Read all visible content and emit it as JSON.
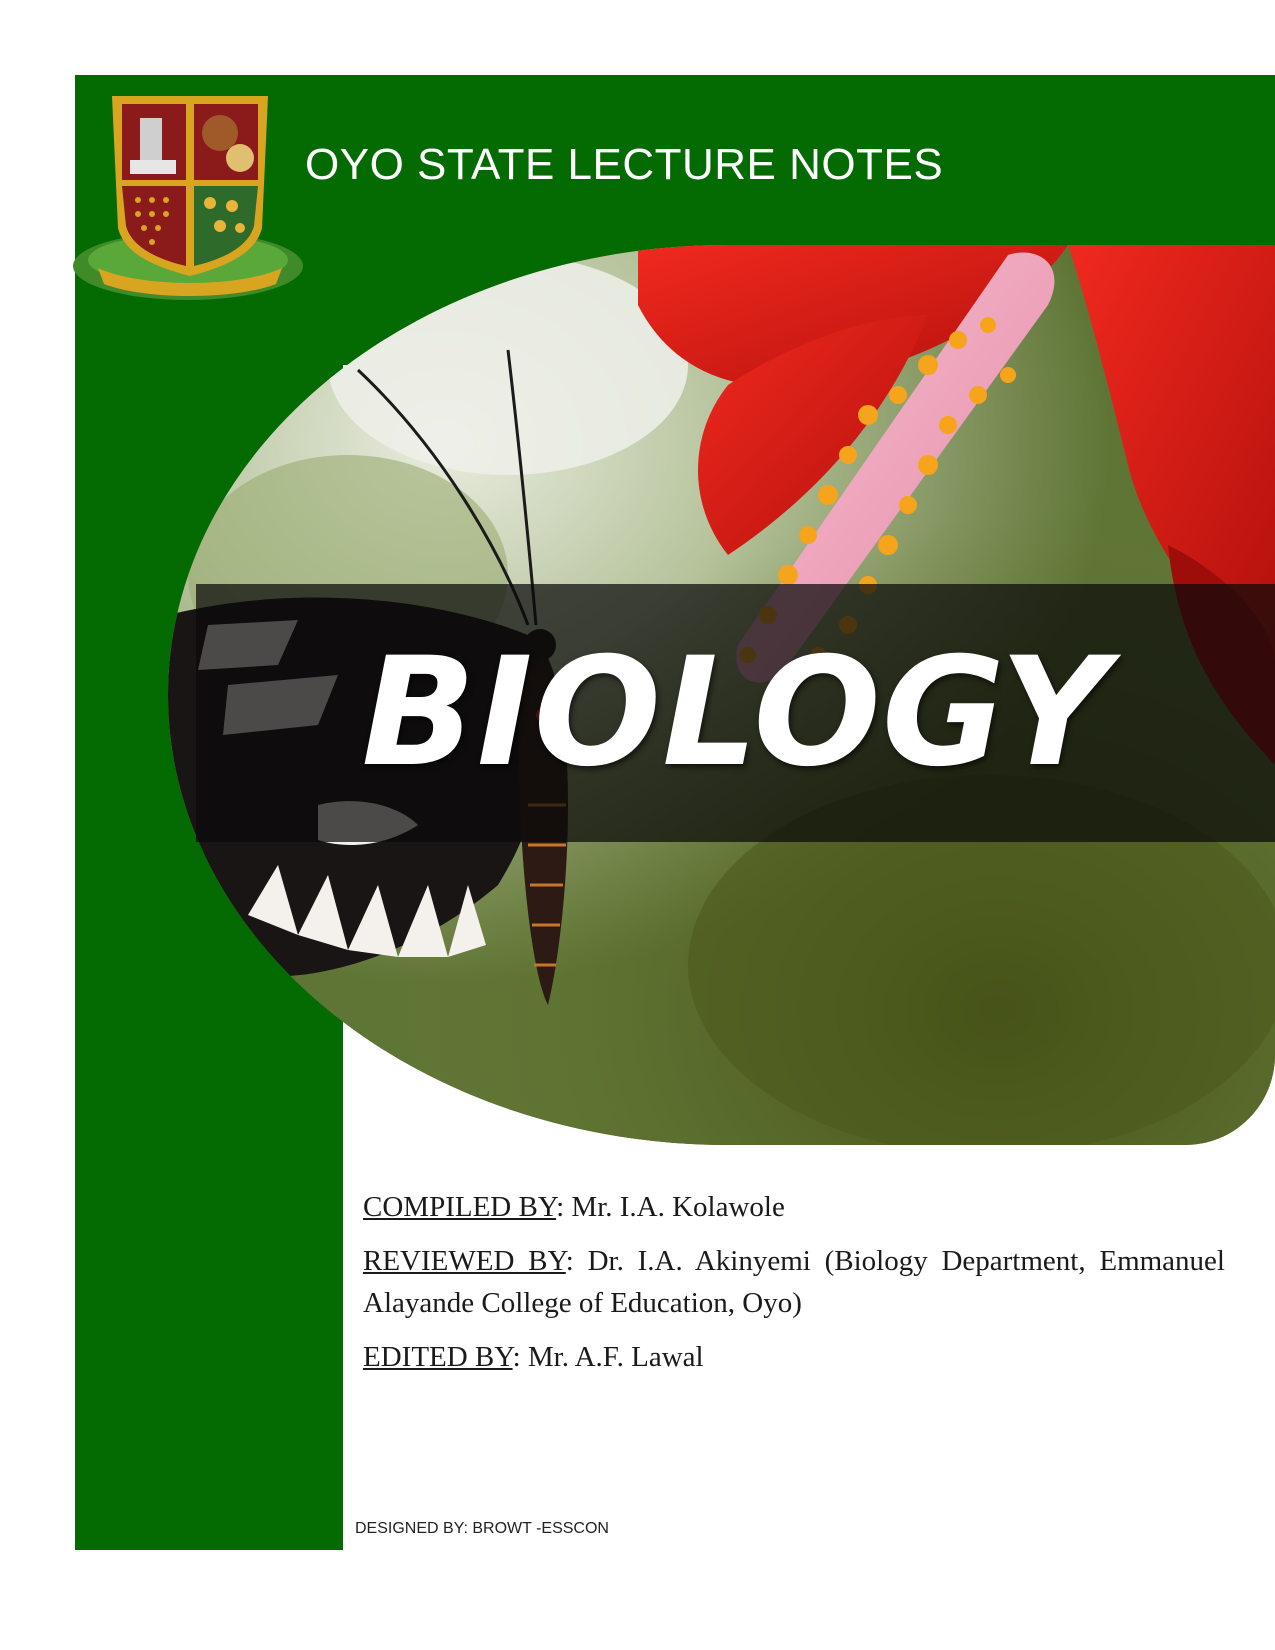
{
  "header": {
    "title": "OYO STATE LECTURE NOTES"
  },
  "cover": {
    "subject": "BIOLOGY"
  },
  "credits": {
    "compiled_label": "COMPILED BY",
    "compiled_value": ":  Mr. I.A. Kolawole",
    "reviewed_label": "REVIEWED BY",
    "reviewed_value": ": Dr. I.A. Akinyemi (Biology Department, Emmanuel Alayande College of Education, Oyo)",
    "edited_label": "EDITED BY",
    "edited_value": ": Mr. A.F. Lawal"
  },
  "footer": {
    "designer": "DESIGNED BY: BROWT -ESSCON"
  },
  "colors": {
    "brand_green": "#036b02",
    "crest_red": "#8b1a1a",
    "crest_gold": "#d9a520",
    "flower_red": "#e8211c"
  },
  "icons": {
    "crest": "oyo-state-coat-of-arms"
  }
}
